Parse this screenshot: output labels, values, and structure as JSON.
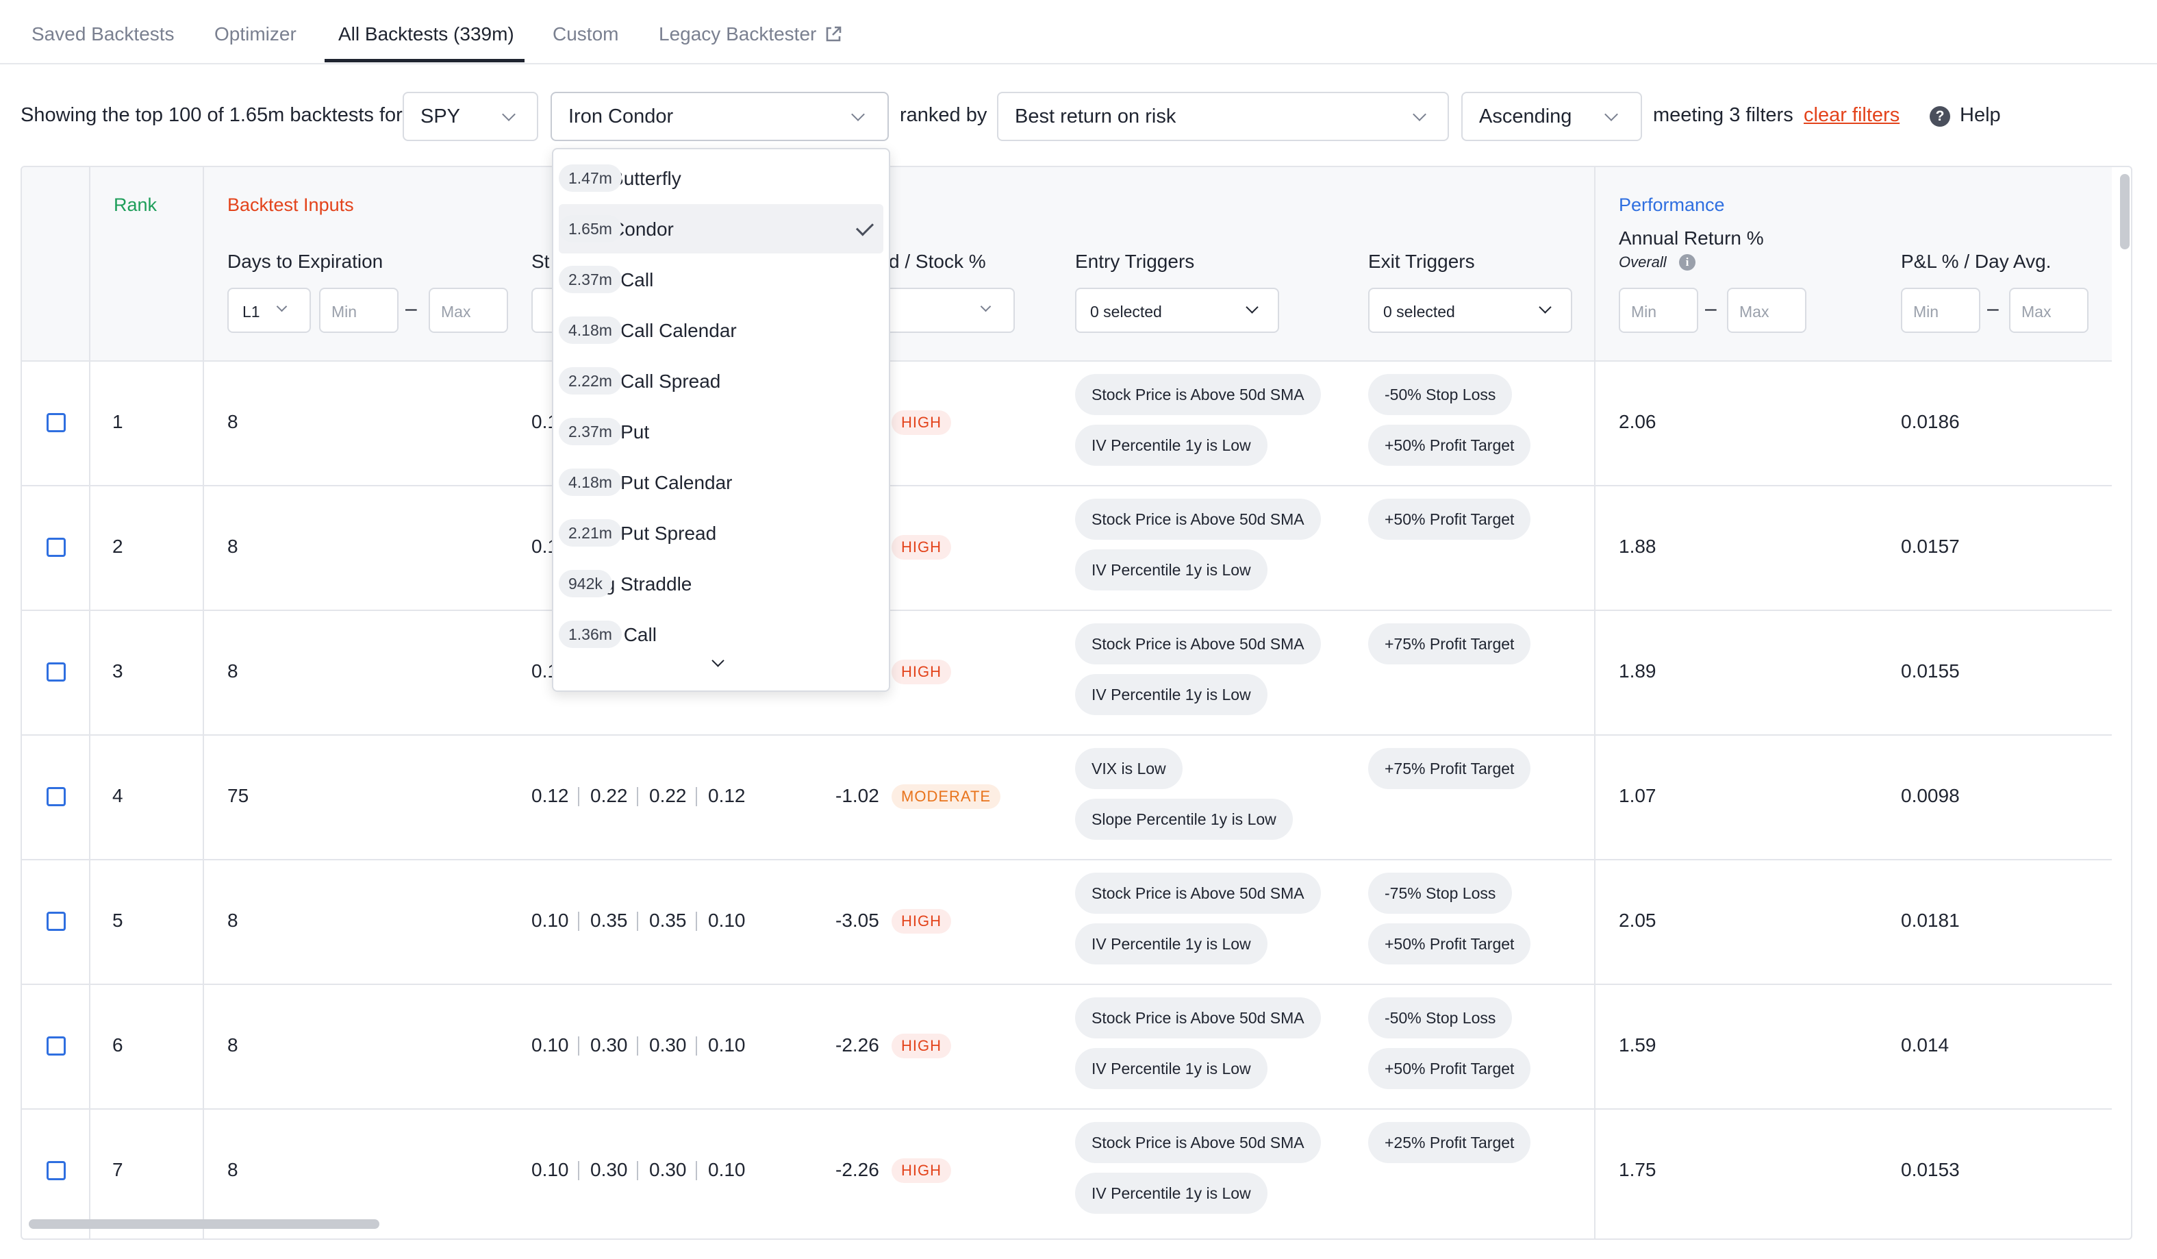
{
  "tabs": [
    {
      "label": "Saved Backtests"
    },
    {
      "label": "Optimizer"
    },
    {
      "label": "All Backtests (339m)"
    },
    {
      "label": "Custom"
    },
    {
      "label": "Legacy Backtester"
    }
  ],
  "filters": {
    "showing_text": "Showing the top 100 of 1.65m backtests for",
    "symbol": "SPY",
    "strategy": "Iron Condor",
    "ranked_by_text": "ranked by",
    "rank_metric": "Best return on risk",
    "order": "Ascending",
    "meeting_text": "meeting 3 filters",
    "clear_label": "clear filters",
    "help_label": "Help"
  },
  "dropdown": {
    "items": [
      {
        "name": "Iron Butterfly",
        "count": "1.47m"
      },
      {
        "name": "Iron Condor",
        "count": "1.65m",
        "selected": true
      },
      {
        "name": "Long Call",
        "count": "2.37m"
      },
      {
        "name": "Long Call Calendar",
        "count": "4.18m"
      },
      {
        "name": "Long Call Spread",
        "count": "2.22m"
      },
      {
        "name": "Long Put",
        "count": "2.37m"
      },
      {
        "name": "Long Put Calendar",
        "count": "4.18m"
      },
      {
        "name": "Long Put Spread",
        "count": "2.21m"
      },
      {
        "name": "Long Straddle",
        "count": "942k"
      },
      {
        "name": "Short Call",
        "count": "1.36m"
      }
    ]
  },
  "table": {
    "groups": {
      "rank": "Rank",
      "inputs": "Backtest Inputs",
      "performance": "Performance"
    },
    "headers": {
      "dte": "Days to Expiration",
      "strikes_partial": "St",
      "stock_partial": "d / Stock %",
      "entry": "Entry Triggers",
      "exit": "Exit Triggers",
      "annual": "Annual Return %",
      "annual_sub": "Overall",
      "pnl": "P&L % / Day Avg."
    },
    "controls": {
      "dte_select": "L1",
      "min": "Min",
      "max": "Max",
      "entry_select": "0 selected",
      "exit_select": "0 selected"
    },
    "colors": {
      "rank": "#1e9e5a",
      "inputs": "#e3431b",
      "performance": "#2f6fe0"
    },
    "rows": [
      {
        "rank": "1",
        "dte": "8",
        "strikes": [
          "0.1"
        ],
        "cost": "",
        "risk": "HIGH",
        "entry": [
          "Stock Price is Above 50d SMA",
          "IV Percentile 1y is Low"
        ],
        "exit": [
          "-50% Stop Loss",
          "+50% Profit Target"
        ],
        "annual": "2.06",
        "pnl": "0.0186"
      },
      {
        "rank": "2",
        "dte": "8",
        "strikes": [
          "0.1"
        ],
        "cost": "",
        "risk": "HIGH",
        "entry": [
          "Stock Price is Above 50d SMA",
          "IV Percentile 1y is Low"
        ],
        "exit": [
          "+50% Profit Target"
        ],
        "annual": "1.88",
        "pnl": "0.0157"
      },
      {
        "rank": "3",
        "dte": "8",
        "strikes": [
          "0.1"
        ],
        "cost": "",
        "risk": "HIGH",
        "entry": [
          "Stock Price is Above 50d SMA",
          "IV Percentile 1y is Low"
        ],
        "exit": [
          "+75% Profit Target"
        ],
        "annual": "1.89",
        "pnl": "0.0155"
      },
      {
        "rank": "4",
        "dte": "75",
        "strikes": [
          "0.12",
          "0.22",
          "0.22",
          "0.12"
        ],
        "cost": "-1.02",
        "risk": "MODERATE",
        "entry": [
          "VIX is Low",
          "Slope Percentile 1y is Low"
        ],
        "exit": [
          "+75% Profit Target"
        ],
        "annual": "1.07",
        "pnl": "0.0098"
      },
      {
        "rank": "5",
        "dte": "8",
        "strikes": [
          "0.10",
          "0.35",
          "0.35",
          "0.10"
        ],
        "cost": "-3.05",
        "risk": "HIGH",
        "entry": [
          "Stock Price is Above 50d SMA",
          "IV Percentile 1y is Low"
        ],
        "exit": [
          "-75% Stop Loss",
          "+50% Profit Target"
        ],
        "annual": "2.05",
        "pnl": "0.0181"
      },
      {
        "rank": "6",
        "dte": "8",
        "strikes": [
          "0.10",
          "0.30",
          "0.30",
          "0.10"
        ],
        "cost": "-2.26",
        "risk": "HIGH",
        "entry": [
          "Stock Price is Above 50d SMA",
          "IV Percentile 1y is Low"
        ],
        "exit": [
          "-50% Stop Loss",
          "+50% Profit Target"
        ],
        "annual": "1.59",
        "pnl": "0.014"
      },
      {
        "rank": "7",
        "dte": "8",
        "strikes": [
          "0.10",
          "0.30",
          "0.30",
          "0.10"
        ],
        "cost": "-2.26",
        "risk": "HIGH",
        "entry": [
          "Stock Price is Above 50d SMA",
          "IV Percentile 1y is Low"
        ],
        "exit": [
          "+25% Profit Target"
        ],
        "annual": "1.75",
        "pnl": "0.0153"
      }
    ]
  }
}
